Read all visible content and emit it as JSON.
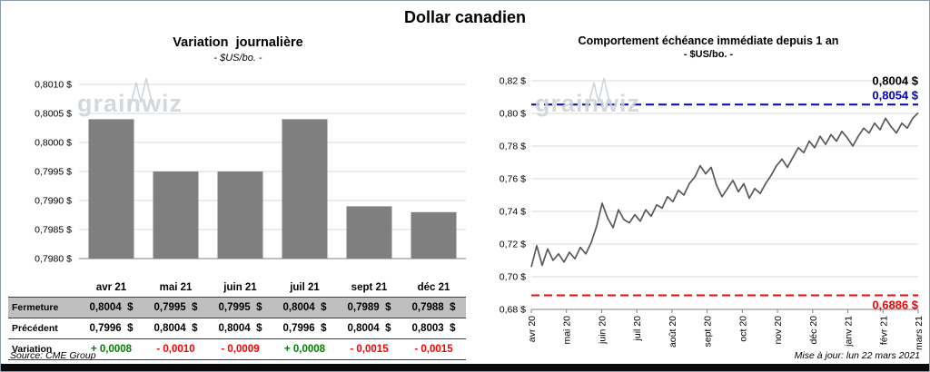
{
  "page_title": "Dollar canadien",
  "watermark": "grainwiz",
  "chart_data": [
    {
      "type": "bar",
      "title": "Variation  journalière",
      "subtitle": "- $US/bo. -",
      "categories": [
        "avr 21",
        "mai 21",
        "juin 21",
        "juil 21",
        "sept 21",
        "déc 21"
      ],
      "values": [
        0.8004,
        0.7995,
        0.7995,
        0.8004,
        0.7989,
        0.7988
      ],
      "ylim": [
        0.798,
        0.801
      ],
      "yticks": [
        0.801,
        0.8005,
        0.8,
        0.7995,
        0.799,
        0.7985,
        0.798
      ],
      "ytick_labels": [
        "0,8010 $",
        "0,8005 $",
        "0,8000 $",
        "0,7995 $",
        "0,7990 $",
        "0,7985 $",
        "0,7980 $"
      ],
      "bar_color": "#7f7f7f",
      "grid": true
    },
    {
      "type": "line",
      "title": "Comportement échéance immédiate depuis 1 an",
      "subtitle": "- $US/bo. -",
      "x_labels": [
        "avr 20",
        "mai 20",
        "juin 20",
        "juil 20",
        "août 20",
        "sept 20",
        "oct 20",
        "nov 20",
        "déc 20",
        "janv 21",
        "févr 21",
        "mars 21"
      ],
      "values": [
        0.706,
        0.719,
        0.707,
        0.717,
        0.71,
        0.714,
        0.709,
        0.715,
        0.711,
        0.718,
        0.714,
        0.721,
        0.731,
        0.745,
        0.736,
        0.73,
        0.741,
        0.735,
        0.733,
        0.738,
        0.734,
        0.741,
        0.737,
        0.744,
        0.742,
        0.749,
        0.746,
        0.753,
        0.75,
        0.757,
        0.761,
        0.768,
        0.763,
        0.767,
        0.756,
        0.749,
        0.754,
        0.759,
        0.752,
        0.757,
        0.748,
        0.754,
        0.751,
        0.757,
        0.762,
        0.768,
        0.772,
        0.767,
        0.773,
        0.779,
        0.776,
        0.783,
        0.779,
        0.786,
        0.781,
        0.787,
        0.783,
        0.789,
        0.785,
        0.78,
        0.786,
        0.791,
        0.788,
        0.794,
        0.79,
        0.797,
        0.792,
        0.788,
        0.794,
        0.791,
        0.797,
        0.8004
      ],
      "ylim": [
        0.68,
        0.82
      ],
      "yticks": [
        0.82,
        0.8,
        0.78,
        0.76,
        0.74,
        0.72,
        0.7,
        0.68
      ],
      "ytick_labels": [
        "0,82 $",
        "0,80 $",
        "0,78 $",
        "0,76 $",
        "0,74 $",
        "0,72 $",
        "0,70 $",
        "0,68 $"
      ],
      "line_color": "#595959",
      "grid": true,
      "legend_position": "none",
      "reference_lines": [
        {
          "value": 0.8054,
          "label": "0,8054 $",
          "color": "#0000cc",
          "style": "dashed"
        },
        {
          "value": 0.6886,
          "label": "0,6886 $",
          "color": "#ff0000",
          "style": "dashed"
        }
      ],
      "last_value_label": {
        "text": "0,8004 $",
        "color": "#000000"
      }
    }
  ],
  "table": {
    "header_bg": "#bfbfbf",
    "rows": [
      {
        "label": "Fermeture",
        "values": [
          "0,8004  $",
          "0,7995  $",
          "0,7995  $",
          "0,8004  $",
          "0,7989  $",
          "0,7988  $"
        ]
      },
      {
        "label": "Précédent",
        "values": [
          "0,7996  $",
          "0,8004  $",
          "0,8004  $",
          "0,7996  $",
          "0,8004  $",
          "0,8003  $"
        ]
      },
      {
        "label": "Variation",
        "values": [
          "+ 0,0008",
          "- 0,0010",
          "- 0,0009",
          "+ 0,0008",
          "- 0,0015",
          "- 0,0015"
        ],
        "value_colors": [
          "#008000",
          "#ff0000",
          "#ff0000",
          "#008000",
          "#ff0000",
          "#ff0000"
        ]
      }
    ]
  },
  "footer": {
    "source": "Source: CME Group",
    "updated": "Mise à jour: lun 22 mars 2021"
  }
}
